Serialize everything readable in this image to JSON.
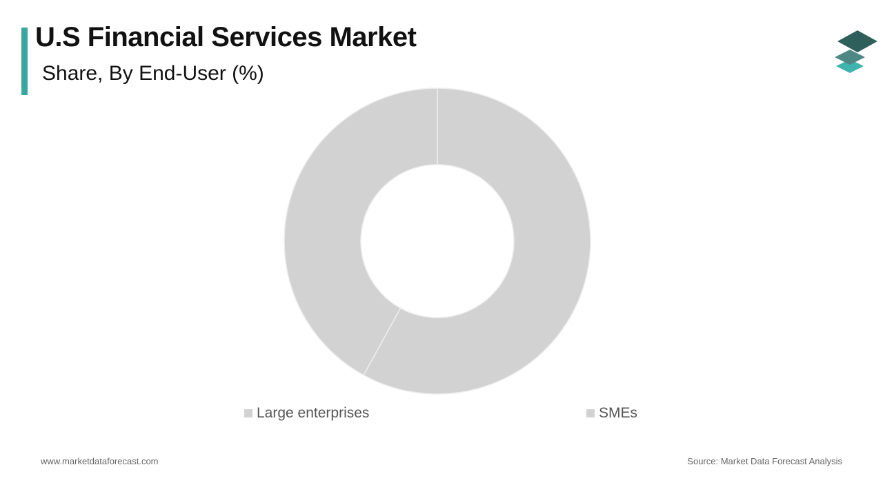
{
  "header": {
    "title": "U.S Financial Services Market",
    "subtitle": "Share, By End-User (%)"
  },
  "colors": {
    "accent": "#3aa6a2",
    "slice": "#d3d2d3",
    "slice_border": "#eeeeee",
    "logo_dark": "#2f5f5a",
    "logo_mid": "#4f8784",
    "logo_light": "#3fb3ad"
  },
  "logo": {
    "icon": "stacked-layers-icon"
  },
  "chart_data": {
    "type": "pie",
    "variant": "donut",
    "categories": [
      "Large enterprises",
      "SMEs"
    ],
    "values": [
      58,
      42
    ],
    "start_angle_deg": 0,
    "direction": "clockwise",
    "legend_position": "bottom",
    "data_labels": false
  },
  "footer": {
    "website": "www.marketdataforecast.com",
    "source": "Source: Market Data Forecast Analysis"
  }
}
